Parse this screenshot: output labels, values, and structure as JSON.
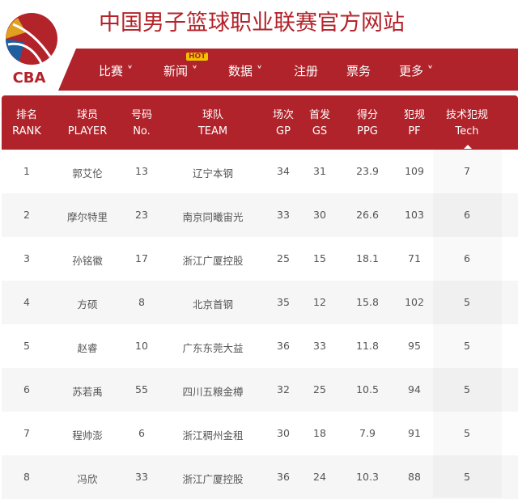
{
  "site": {
    "title": "中国男子篮球职业联赛官方网站",
    "logo_text": "CBA"
  },
  "nav": [
    {
      "label": "比赛 ˅"
    },
    {
      "label": "新闻 ˅",
      "badge": "HOT"
    },
    {
      "label": "数据 ˅"
    },
    {
      "label": "注册"
    },
    {
      "label": "票务"
    },
    {
      "label": "更多 ˅"
    }
  ],
  "colors": {
    "brand": "#b0232a",
    "hot": "#f2c200"
  },
  "table": {
    "columns": [
      {
        "cn": "排名",
        "en": "RANK"
      },
      {
        "cn": "球员",
        "en": "PLAYER"
      },
      {
        "cn": "号码",
        "en": "No."
      },
      {
        "cn": "球队",
        "en": "TEAM"
      },
      {
        "cn": "场次",
        "en": "GP"
      },
      {
        "cn": "首发",
        "en": "GS"
      },
      {
        "cn": "得分",
        "en": "PPG"
      },
      {
        "cn": "犯规",
        "en": "PF"
      },
      {
        "cn": "技术犯规",
        "en": "Tech"
      }
    ],
    "sorted_column": "Tech",
    "rows": [
      [
        "1",
        "郭艾伦",
        "13",
        "辽宁本钢",
        "34",
        "31",
        "23.9",
        "109",
        "7"
      ],
      [
        "2",
        "摩尔特里",
        "23",
        "南京同曦宙光",
        "33",
        "30",
        "26.6",
        "103",
        "6"
      ],
      [
        "3",
        "孙铭徽",
        "17",
        "浙江广厦控股",
        "25",
        "15",
        "18.1",
        "71",
        "6"
      ],
      [
        "4",
        "方硕",
        "8",
        "北京首钢",
        "35",
        "12",
        "15.8",
        "102",
        "5"
      ],
      [
        "5",
        "赵睿",
        "10",
        "广东东莞大益",
        "36",
        "33",
        "11.8",
        "95",
        "5"
      ],
      [
        "6",
        "苏若禹",
        "55",
        "四川五粮金樽",
        "32",
        "25",
        "10.5",
        "94",
        "5"
      ],
      [
        "7",
        "程帅澎",
        "6",
        "浙江稠州金租",
        "30",
        "18",
        "7.9",
        "91",
        "5"
      ],
      [
        "8",
        "冯欣",
        "33",
        "浙江广厦控股",
        "36",
        "24",
        "10.3",
        "88",
        "5"
      ]
    ]
  }
}
